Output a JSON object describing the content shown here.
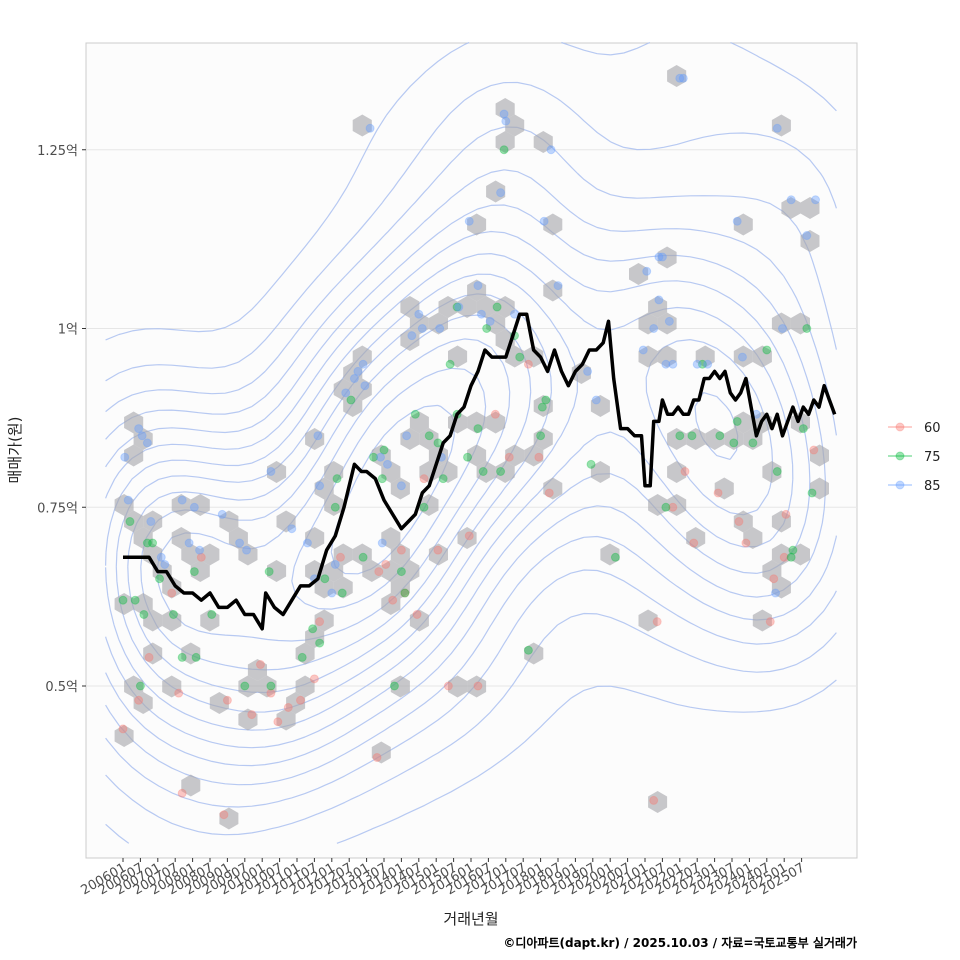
{
  "chart_data": {
    "type": "scatter",
    "title": "",
    "xlabel": "거래년월",
    "ylabel": "매매가(원)",
    "caption": "©디아파트(dapt.kr) / 2025.10.03 / 자료=국토교통부 실거래가",
    "x_ticks": [
      "200601",
      "200607",
      "200701",
      "200707",
      "200801",
      "200807",
      "200901",
      "200907",
      "201001",
      "201007",
      "201101",
      "201107",
      "201201",
      "201207",
      "201301",
      "201307",
      "201401",
      "201407",
      "201501",
      "201507",
      "201601",
      "201607",
      "201701",
      "201707",
      "201801",
      "201807",
      "201901",
      "201907",
      "202001",
      "202007",
      "202101",
      "202107",
      "202201",
      "202207",
      "202301",
      "202307",
      "202401",
      "202407",
      "202501",
      "202507"
    ],
    "y_ticks": [
      {
        "value": 0.5,
        "label": "0.5억"
      },
      {
        "value": 0.75,
        "label": "0.75억"
      },
      {
        "value": 1.0,
        "label": "1억"
      },
      {
        "value": 1.25,
        "label": "1.25억"
      }
    ],
    "ylim": [
      0.25,
      1.42
    ],
    "xlim": [
      -2,
      42.5
    ],
    "grid": "horizontal",
    "legend_position": "right",
    "series": [
      {
        "name": "60",
        "color": "#f8766d",
        "points": [
          [
            0.0,
            0.44
          ],
          [
            0.9,
            0.48
          ],
          [
            1.5,
            0.54
          ],
          [
            2.8,
            0.63
          ],
          [
            3.4,
            0.35
          ],
          [
            3.2,
            0.49
          ],
          [
            4.5,
            0.68
          ],
          [
            5.8,
            0.32
          ],
          [
            6.0,
            0.48
          ],
          [
            7.4,
            0.46
          ],
          [
            7.9,
            0.53
          ],
          [
            8.5,
            0.49
          ],
          [
            8.9,
            0.45
          ],
          [
            9.5,
            0.47
          ],
          [
            10.2,
            0.48
          ],
          [
            11.0,
            0.51
          ],
          [
            11.3,
            0.59
          ],
          [
            12.5,
            0.68
          ],
          [
            14.6,
            0.4
          ],
          [
            14.7,
            0.66
          ],
          [
            15.1,
            0.67
          ],
          [
            15.5,
            0.62
          ],
          [
            16.2,
            0.63
          ],
          [
            16.0,
            0.69
          ],
          [
            16.9,
            0.6
          ],
          [
            17.3,
            0.79
          ],
          [
            18.1,
            0.69
          ],
          [
            18.7,
            0.5
          ],
          [
            19.9,
            0.71
          ],
          [
            20.4,
            0.5
          ],
          [
            21.4,
            0.88
          ],
          [
            22.2,
            0.82
          ],
          [
            23.3,
            0.95
          ],
          [
            23.9,
            0.82
          ],
          [
            24.5,
            0.77
          ],
          [
            30.5,
            0.34
          ],
          [
            30.7,
            0.59
          ],
          [
            31.6,
            0.75
          ],
          [
            32.3,
            0.8
          ],
          [
            32.8,
            0.7
          ],
          [
            34.2,
            0.77
          ],
          [
            35.4,
            0.73
          ],
          [
            35.8,
            0.7
          ],
          [
            37.2,
            0.59
          ],
          [
            37.4,
            0.65
          ],
          [
            38.0,
            0.68
          ],
          [
            38.1,
            0.74
          ],
          [
            39.7,
            0.83
          ]
        ]
      },
      {
        "name": "75",
        "color": "#00ba38",
        "points": [
          [
            0.0,
            0.62
          ],
          [
            0.4,
            0.73
          ],
          [
            0.7,
            0.62
          ],
          [
            1.0,
            0.5
          ],
          [
            1.2,
            0.6
          ],
          [
            1.4,
            0.7
          ],
          [
            1.7,
            0.7
          ],
          [
            2.1,
            0.65
          ],
          [
            2.9,
            0.6
          ],
          [
            3.4,
            0.54
          ],
          [
            4.1,
            0.66
          ],
          [
            4.2,
            0.54
          ],
          [
            5.1,
            0.6
          ],
          [
            7.0,
            0.5
          ],
          [
            8.4,
            0.66
          ],
          [
            8.5,
            0.5
          ],
          [
            10.3,
            0.54
          ],
          [
            10.9,
            0.58
          ],
          [
            11.3,
            0.56
          ],
          [
            11.6,
            0.65
          ],
          [
            12.2,
            0.75
          ],
          [
            12.6,
            0.63
          ],
          [
            12.3,
            0.79
          ],
          [
            13.1,
            0.9
          ],
          [
            13.8,
            0.68
          ],
          [
            14.4,
            0.82
          ],
          [
            15.0,
            0.83
          ],
          [
            14.9,
            0.79
          ],
          [
            15.6,
            0.5
          ],
          [
            16.0,
            0.66
          ],
          [
            16.2,
            0.63
          ],
          [
            16.8,
            0.88
          ],
          [
            17.3,
            0.75
          ],
          [
            17.6,
            0.85
          ],
          [
            18.1,
            0.84
          ],
          [
            18.4,
            0.79
          ],
          [
            18.8,
            0.95
          ],
          [
            19.2,
            0.88
          ],
          [
            19.2,
            1.03
          ],
          [
            19.8,
            0.82
          ],
          [
            20.4,
            0.86
          ],
          [
            20.7,
            0.8
          ],
          [
            20.9,
            1.0
          ],
          [
            21.5,
            1.03
          ],
          [
            21.7,
            0.8
          ],
          [
            21.9,
            1.25
          ],
          [
            22.5,
            0.99
          ],
          [
            22.8,
            0.96
          ],
          [
            23.3,
            0.55
          ],
          [
            24.0,
            0.85
          ],
          [
            24.1,
            0.89
          ],
          [
            24.3,
            0.9
          ],
          [
            26.9,
            0.81
          ],
          [
            28.3,
            0.68
          ],
          [
            31.2,
            0.75
          ],
          [
            32.0,
            0.85
          ],
          [
            32.7,
            0.85
          ],
          [
            33.3,
            0.95
          ],
          [
            34.3,
            0.85
          ],
          [
            35.1,
            0.84
          ],
          [
            35.3,
            0.87
          ],
          [
            36.2,
            0.84
          ],
          [
            37.0,
            0.97
          ],
          [
            37.6,
            0.8
          ],
          [
            38.4,
            0.68
          ],
          [
            38.5,
            0.69
          ],
          [
            39.1,
            0.86
          ],
          [
            39.3,
            1.0
          ],
          [
            39.6,
            0.77
          ]
        ]
      },
      {
        "name": "85",
        "color": "#619cff",
        "points": [
          [
            0.1,
            0.82
          ],
          [
            0.3,
            0.76
          ],
          [
            0.9,
            0.86
          ],
          [
            1.1,
            0.85
          ],
          [
            1.4,
            0.84
          ],
          [
            1.6,
            0.73
          ],
          [
            2.2,
            0.68
          ],
          [
            2.4,
            0.67
          ],
          [
            3.4,
            0.76
          ],
          [
            3.8,
            0.7
          ],
          [
            4.1,
            0.75
          ],
          [
            4.4,
            0.69
          ],
          [
            5.7,
            0.74
          ],
          [
            6.7,
            0.7
          ],
          [
            7.1,
            0.69
          ],
          [
            8.5,
            0.8
          ],
          [
            9.7,
            0.72
          ],
          [
            10.6,
            0.7
          ],
          [
            11.0,
            0.65
          ],
          [
            11.3,
            0.78
          ],
          [
            11.2,
            0.85
          ],
          [
            12.0,
            0.63
          ],
          [
            12.2,
            0.67
          ],
          [
            12.8,
            0.91
          ],
          [
            13.3,
            0.93
          ],
          [
            13.5,
            0.94
          ],
          [
            13.8,
            0.95
          ],
          [
            13.9,
            0.92
          ],
          [
            14.2,
            1.28
          ],
          [
            14.9,
            0.7
          ],
          [
            14.8,
            0.82
          ],
          [
            15.2,
            0.81
          ],
          [
            16.0,
            0.78
          ],
          [
            16.3,
            0.85
          ],
          [
            16.6,
            0.99
          ],
          [
            17.0,
            1.02
          ],
          [
            17.2,
            1.0
          ],
          [
            18.2,
            1.0
          ],
          [
            18.3,
            0.82
          ],
          [
            19.3,
            1.03
          ],
          [
            19.9,
            1.15
          ],
          [
            20.4,
            1.06
          ],
          [
            20.6,
            1.02
          ],
          [
            21.1,
            1.01
          ],
          [
            21.7,
            1.19
          ],
          [
            21.9,
            1.3
          ],
          [
            22.0,
            1.29
          ],
          [
            22.5,
            1.02
          ],
          [
            24.2,
            1.15
          ],
          [
            24.6,
            1.25
          ],
          [
            25.0,
            1.06
          ],
          [
            26.7,
            0.94
          ],
          [
            27.2,
            0.9
          ],
          [
            29.9,
            0.97
          ],
          [
            30.1,
            1.08
          ],
          [
            30.5,
            1.0
          ],
          [
            30.8,
            1.04
          ],
          [
            30.8,
            1.1
          ],
          [
            31.0,
            1.1
          ],
          [
            31.2,
            0.95
          ],
          [
            31.4,
            1.01
          ],
          [
            31.6,
            0.95
          ],
          [
            32.0,
            1.35
          ],
          [
            32.2,
            1.35
          ],
          [
            33.0,
            0.95
          ],
          [
            33.6,
            0.95
          ],
          [
            35.3,
            1.15
          ],
          [
            35.6,
            0.96
          ],
          [
            36.4,
            0.88
          ],
          [
            37.5,
            0.63
          ],
          [
            37.6,
            1.28
          ],
          [
            37.9,
            1.0
          ],
          [
            38.4,
            1.18
          ],
          [
            39.3,
            1.13
          ],
          [
            39.8,
            1.18
          ]
        ]
      }
    ],
    "trend": {
      "name": "median",
      "color": "#000000",
      "points": [
        [
          0.0,
          0.68
        ],
        [
          0.5,
          0.68
        ],
        [
          1.0,
          0.68
        ],
        [
          1.5,
          0.68
        ],
        [
          2.0,
          0.66
        ],
        [
          2.5,
          0.66
        ],
        [
          3.0,
          0.64
        ],
        [
          3.5,
          0.63
        ],
        [
          4.0,
          0.63
        ],
        [
          4.5,
          0.62
        ],
        [
          5.0,
          0.63
        ],
        [
          5.5,
          0.61
        ],
        [
          6.0,
          0.61
        ],
        [
          6.5,
          0.62
        ],
        [
          7.0,
          0.6
        ],
        [
          7.5,
          0.6
        ],
        [
          8.0,
          0.58
        ],
        [
          8.2,
          0.63
        ],
        [
          8.7,
          0.61
        ],
        [
          9.2,
          0.6
        ],
        [
          9.7,
          0.62
        ],
        [
          10.2,
          0.64
        ],
        [
          10.7,
          0.64
        ],
        [
          11.2,
          0.65
        ],
        [
          11.7,
          0.69
        ],
        [
          12.2,
          0.71
        ],
        [
          12.7,
          0.75
        ],
        [
          13.0,
          0.78
        ],
        [
          13.3,
          0.81
        ],
        [
          13.7,
          0.8
        ],
        [
          14.0,
          0.8
        ],
        [
          14.5,
          0.79
        ],
        [
          15.0,
          0.76
        ],
        [
          15.5,
          0.74
        ],
        [
          16.0,
          0.72
        ],
        [
          16.4,
          0.73
        ],
        [
          16.8,
          0.74
        ],
        [
          17.2,
          0.77
        ],
        [
          17.6,
          0.78
        ],
        [
          18.0,
          0.81
        ],
        [
          18.4,
          0.84
        ],
        [
          18.8,
          0.85
        ],
        [
          19.2,
          0.88
        ],
        [
          19.6,
          0.89
        ],
        [
          20.0,
          0.92
        ],
        [
          20.4,
          0.94
        ],
        [
          20.8,
          0.97
        ],
        [
          21.2,
          0.96
        ],
        [
          21.6,
          0.96
        ],
        [
          22.0,
          0.96
        ],
        [
          22.4,
          0.99
        ],
        [
          22.8,
          1.02
        ],
        [
          23.2,
          1.02
        ],
        [
          23.6,
          0.97
        ],
        [
          24.0,
          0.96
        ],
        [
          24.4,
          0.94
        ],
        [
          24.8,
          0.97
        ],
        [
          25.2,
          0.94
        ],
        [
          25.6,
          0.92
        ],
        [
          26.0,
          0.94
        ],
        [
          26.4,
          0.95
        ],
        [
          26.8,
          0.97
        ],
        [
          27.2,
          0.97
        ],
        [
          27.6,
          0.98
        ],
        [
          27.9,
          1.01
        ],
        [
          28.2,
          0.93
        ],
        [
          28.6,
          0.86
        ],
        [
          29.0,
          0.86
        ],
        [
          29.4,
          0.85
        ],
        [
          29.8,
          0.85
        ],
        [
          30.0,
          0.78
        ],
        [
          30.3,
          0.78
        ],
        [
          30.5,
          0.87
        ],
        [
          30.8,
          0.87
        ],
        [
          31.0,
          0.9
        ],
        [
          31.3,
          0.88
        ],
        [
          31.6,
          0.88
        ],
        [
          31.9,
          0.89
        ],
        [
          32.2,
          0.88
        ],
        [
          32.5,
          0.88
        ],
        [
          32.8,
          0.9
        ],
        [
          33.1,
          0.9
        ],
        [
          33.4,
          0.93
        ],
        [
          33.7,
          0.93
        ],
        [
          34.0,
          0.94
        ],
        [
          34.3,
          0.93
        ],
        [
          34.6,
          0.94
        ],
        [
          34.9,
          0.91
        ],
        [
          35.2,
          0.9
        ],
        [
          35.5,
          0.91
        ],
        [
          35.8,
          0.93
        ],
        [
          36.1,
          0.89
        ],
        [
          36.4,
          0.85
        ],
        [
          36.7,
          0.87
        ],
        [
          37.0,
          0.88
        ],
        [
          37.3,
          0.86
        ],
        [
          37.6,
          0.88
        ],
        [
          37.9,
          0.85
        ],
        [
          38.2,
          0.87
        ],
        [
          38.5,
          0.89
        ],
        [
          38.8,
          0.87
        ],
        [
          39.1,
          0.89
        ],
        [
          39.4,
          0.88
        ],
        [
          39.7,
          0.9
        ],
        [
          40.0,
          0.89
        ],
        [
          40.3,
          0.92
        ],
        [
          40.6,
          0.9
        ],
        [
          40.9,
          0.88
        ]
      ]
    }
  }
}
